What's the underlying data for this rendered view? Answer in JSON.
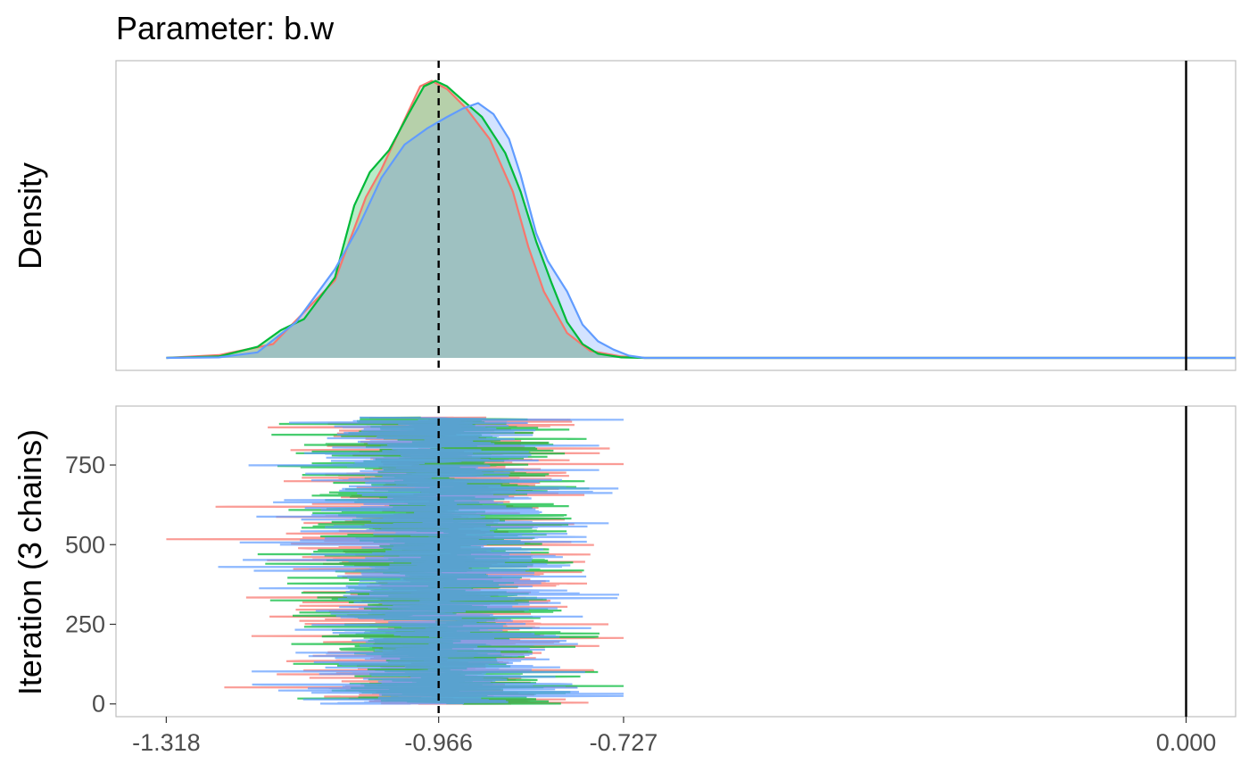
{
  "chart_data": {
    "type": "density-trace",
    "title": "Parameter: b.w",
    "x_ticks": [
      "-1.318",
      "-0.966",
      "-0.727",
      "0.000"
    ],
    "x_tick_values": [
      -1.318,
      -0.966,
      -0.727,
      0.0
    ],
    "x_range": [
      -1.383,
      0.064
    ],
    "reference_lines": [
      {
        "x": -0.966,
        "style": "dashed",
        "color": "#000000"
      },
      {
        "x": 0.0,
        "style": "solid",
        "color": "#000000"
      }
    ],
    "chains": [
      {
        "chain": 1,
        "color": "#F8766D"
      },
      {
        "chain": 2,
        "color": "#00BA38"
      },
      {
        "chain": 3,
        "color": "#619CFF"
      }
    ],
    "panels": [
      {
        "name": "density",
        "ylabel": "Density",
        "y_ticks_shown": false,
        "y_range": [
          0,
          1.06
        ],
        "series": [
          {
            "chain": 1,
            "points": [
              [
                -1.318,
                0.0
              ],
              [
                -1.25,
                0.01
              ],
              [
                -1.18,
                0.05
              ],
              [
                -1.1,
                0.28
              ],
              [
                -1.06,
                0.58
              ],
              [
                -1.04,
                0.68
              ],
              [
                -1.02,
                0.8
              ],
              [
                -0.99,
                0.98
              ],
              [
                -0.975,
                1.0
              ],
              [
                -0.955,
                0.97
              ],
              [
                -0.93,
                0.9
              ],
              [
                -0.9,
                0.79
              ],
              [
                -0.87,
                0.6
              ],
              [
                -0.85,
                0.4
              ],
              [
                -0.83,
                0.24
              ],
              [
                -0.8,
                0.09
              ],
              [
                -0.77,
                0.025
              ],
              [
                -0.73,
                0.005
              ],
              [
                -0.7,
                0.0
              ],
              [
                0.064,
                0.0
              ]
            ]
          },
          {
            "chain": 2,
            "points": [
              [
                -1.318,
                0.0
              ],
              [
                -1.25,
                0.005
              ],
              [
                -1.2,
                0.04
              ],
              [
                -1.17,
                0.1
              ],
              [
                -1.14,
                0.14
              ],
              [
                -1.1,
                0.29
              ],
              [
                -1.075,
                0.55
              ],
              [
                -1.055,
                0.67
              ],
              [
                -1.03,
                0.75
              ],
              [
                -1.005,
                0.88
              ],
              [
                -0.985,
                0.98
              ],
              [
                -0.97,
                1.0
              ],
              [
                -0.955,
                0.98
              ],
              [
                -0.935,
                0.93
              ],
              [
                -0.91,
                0.87
              ],
              [
                -0.88,
                0.74
              ],
              [
                -0.86,
                0.6
              ],
              [
                -0.84,
                0.42
              ],
              [
                -0.82,
                0.27
              ],
              [
                -0.8,
                0.13
              ],
              [
                -0.78,
                0.05
              ],
              [
                -0.76,
                0.015
              ],
              [
                -0.73,
                0.002
              ],
              [
                -0.7,
                0.0
              ],
              [
                0.064,
                0.0
              ]
            ]
          },
          {
            "chain": 3,
            "points": [
              [
                -1.318,
                0.0
              ],
              [
                -1.25,
                0.002
              ],
              [
                -1.2,
                0.02
              ],
              [
                -1.15,
                0.13
              ],
              [
                -1.1,
                0.32
              ],
              [
                -1.07,
                0.47
              ],
              [
                -1.04,
                0.65
              ],
              [
                -1.01,
                0.77
              ],
              [
                -0.98,
                0.83
              ],
              [
                -0.955,
                0.87
              ],
              [
                -0.935,
                0.9
              ],
              [
                -0.915,
                0.92
              ],
              [
                -0.895,
                0.88
              ],
              [
                -0.875,
                0.79
              ],
              [
                -0.86,
                0.66
              ],
              [
                -0.84,
                0.45
              ],
              [
                -0.825,
                0.35
              ],
              [
                -0.8,
                0.24
              ],
              [
                -0.78,
                0.12
              ],
              [
                -0.76,
                0.06
              ],
              [
                -0.74,
                0.03
              ],
              [
                -0.72,
                0.008
              ],
              [
                -0.7,
                0.0
              ],
              [
                0.064,
                0.0
              ]
            ]
          }
        ]
      },
      {
        "name": "trace",
        "ylabel": "Iteration (3 chains)",
        "y_ticks": [
          "0",
          "250",
          "500",
          "750"
        ],
        "y_tick_values": [
          0,
          250,
          500,
          750
        ],
        "y_range": [
          -40,
          935
        ],
        "iterations_per_chain": 900,
        "approx_center": -0.966,
        "approx_sd": 0.085,
        "x_extent": [
          -1.318,
          -0.727
        ]
      }
    ]
  }
}
